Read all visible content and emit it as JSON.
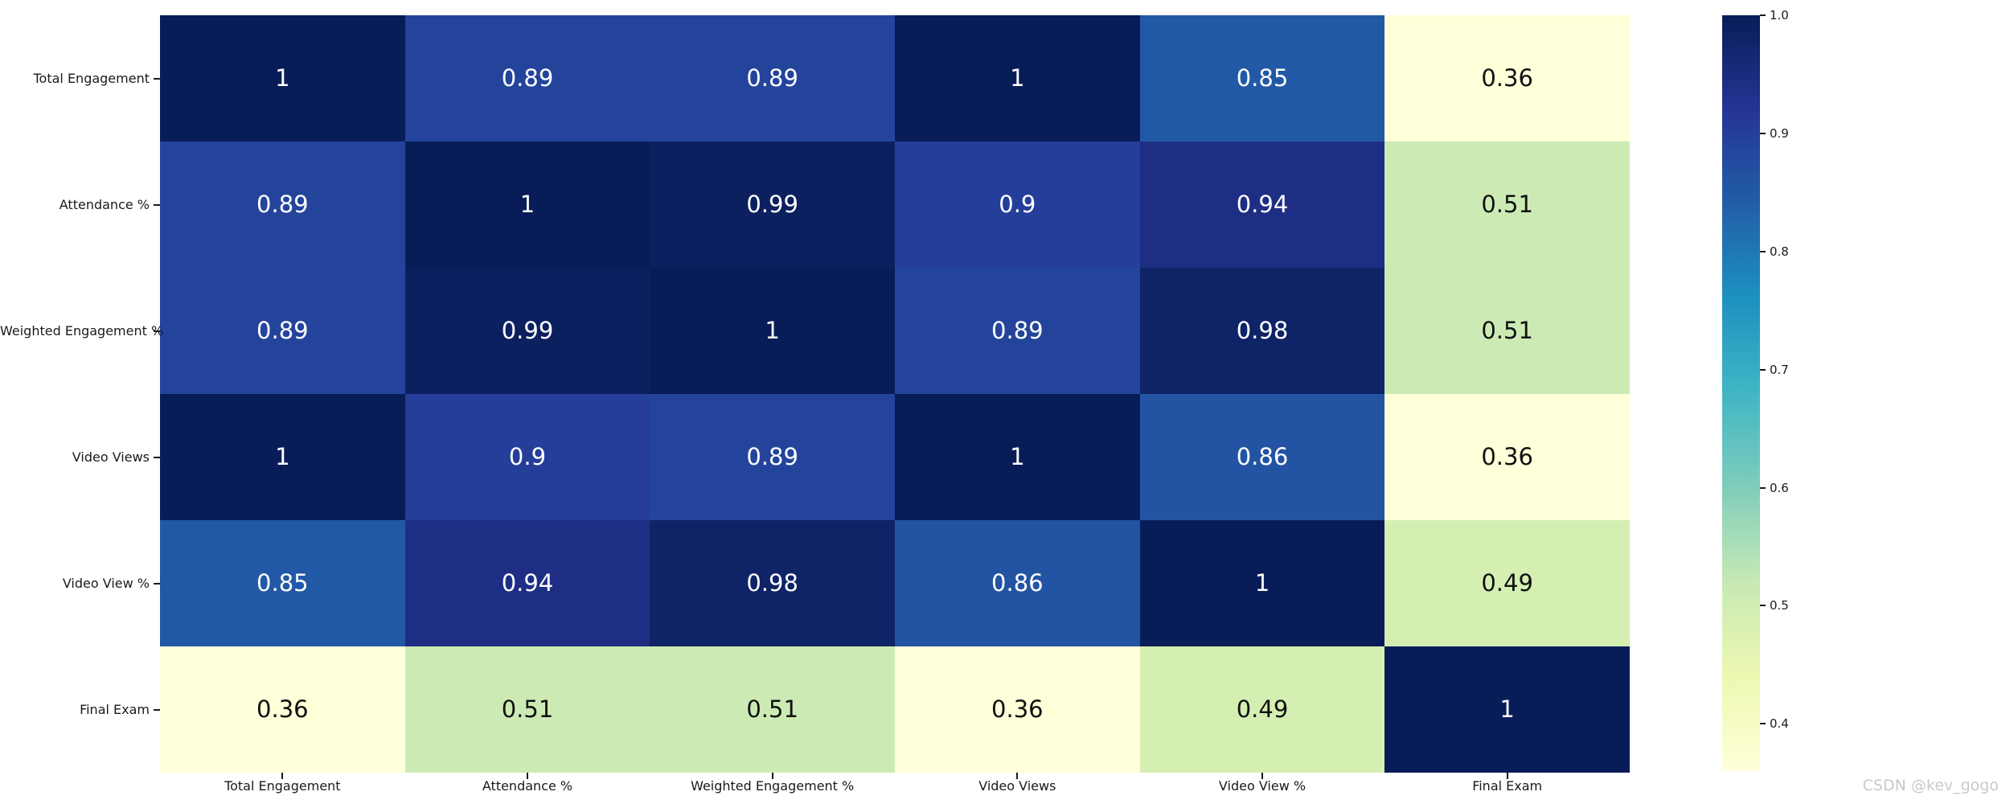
{
  "watermark": "CSDN @kev_gogo",
  "chart_data": {
    "type": "heatmap",
    "title": "",
    "xlabel": "",
    "ylabel": "",
    "categories": [
      "Total Engagement",
      "Attendance %",
      "Weighted Engagement %",
      "Video Views",
      "Video View %",
      "Final Exam"
    ],
    "matrix": [
      [
        1.0,
        0.89,
        0.89,
        1.0,
        0.85,
        0.36
      ],
      [
        0.89,
        1.0,
        0.99,
        0.9,
        0.94,
        0.51
      ],
      [
        0.89,
        0.99,
        1.0,
        0.89,
        0.98,
        0.51
      ],
      [
        1.0,
        0.9,
        0.89,
        1.0,
        0.86,
        0.36
      ],
      [
        0.85,
        0.94,
        0.98,
        0.86,
        1.0,
        0.49
      ],
      [
        0.36,
        0.51,
        0.51,
        0.36,
        0.49,
        1.0
      ]
    ],
    "cell_labels": [
      [
        "1",
        "0.89",
        "0.89",
        "1",
        "0.85",
        "0.36"
      ],
      [
        "0.89",
        "1",
        "0.99",
        "0.9",
        "0.94",
        "0.51"
      ],
      [
        "0.89",
        "0.99",
        "1",
        "0.89",
        "0.98",
        "0.51"
      ],
      [
        "1",
        "0.9",
        "0.89",
        "1",
        "0.86",
        "0.36"
      ],
      [
        "0.85",
        "0.94",
        "0.98",
        "0.86",
        "1",
        "0.49"
      ],
      [
        "0.36",
        "0.51",
        "0.51",
        "0.36",
        "0.49",
        "1"
      ]
    ],
    "palette": {
      "1": {
        "bg": "#081d58",
        "fg": "#ffffff"
      },
      "0.99": {
        "bg": "#0c2060",
        "fg": "#ffffff"
      },
      "0.98": {
        "bg": "#0f2367",
        "fg": "#ffffff"
      },
      "0.94": {
        "bg": "#1e2e85",
        "fg": "#ffffff"
      },
      "0.9": {
        "bg": "#243e99",
        "fg": "#ffffff"
      },
      "0.89": {
        "bg": "#24449c",
        "fg": "#ffffff"
      },
      "0.86": {
        "bg": "#2354a3",
        "fg": "#ffffff"
      },
      "0.85": {
        "bg": "#2259a6",
        "fg": "#ffffff"
      },
      "0.51": {
        "bg": "#ccebb4",
        "fg": "#111111"
      },
      "0.49": {
        "bg": "#d5efb3",
        "fg": "#111111"
      },
      "0.36": {
        "bg": "#ffffd9",
        "fg": "#111111"
      }
    },
    "colormap": "YlGnBu",
    "vmin": 0.36,
    "vmax": 1.0,
    "grid": false,
    "colorbar": {
      "position": "right",
      "ticks": [
        "1.0",
        "0.9",
        "0.8",
        "0.7",
        "0.6",
        "0.5",
        "0.4"
      ],
      "gradient_top_to_bottom": [
        "#081d58",
        "#253494",
        "#225ea8",
        "#1d91c0",
        "#41b6c4",
        "#7fcdbb",
        "#c7e9b4",
        "#edf8b1",
        "#ffffd9"
      ]
    }
  }
}
